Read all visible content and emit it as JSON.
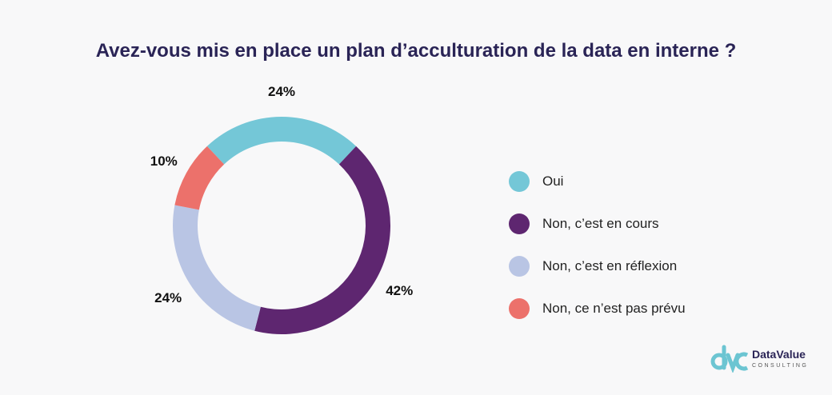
{
  "chart_data": {
    "type": "pie",
    "donut": true,
    "title": "Avez-vous mis en place un plan d’acculturation de la data en interne ?",
    "categories": [
      "Oui",
      "Non, c’est en cours",
      "Non, c’est en réflexion",
      "Non, ce n’est pas prévu"
    ],
    "values": [
      24,
      42,
      24,
      10
    ],
    "data_labels": [
      "24%",
      "42%",
      "24%",
      "10%"
    ],
    "colors": [
      "#74c7d7",
      "#5e2670",
      "#b9c5e4",
      "#ec716b"
    ],
    "legend_position": "right"
  },
  "logo": {
    "name": "DataValue",
    "sub": "CONSULTING",
    "mark": "dvc",
    "color": "#6cc5d2"
  }
}
